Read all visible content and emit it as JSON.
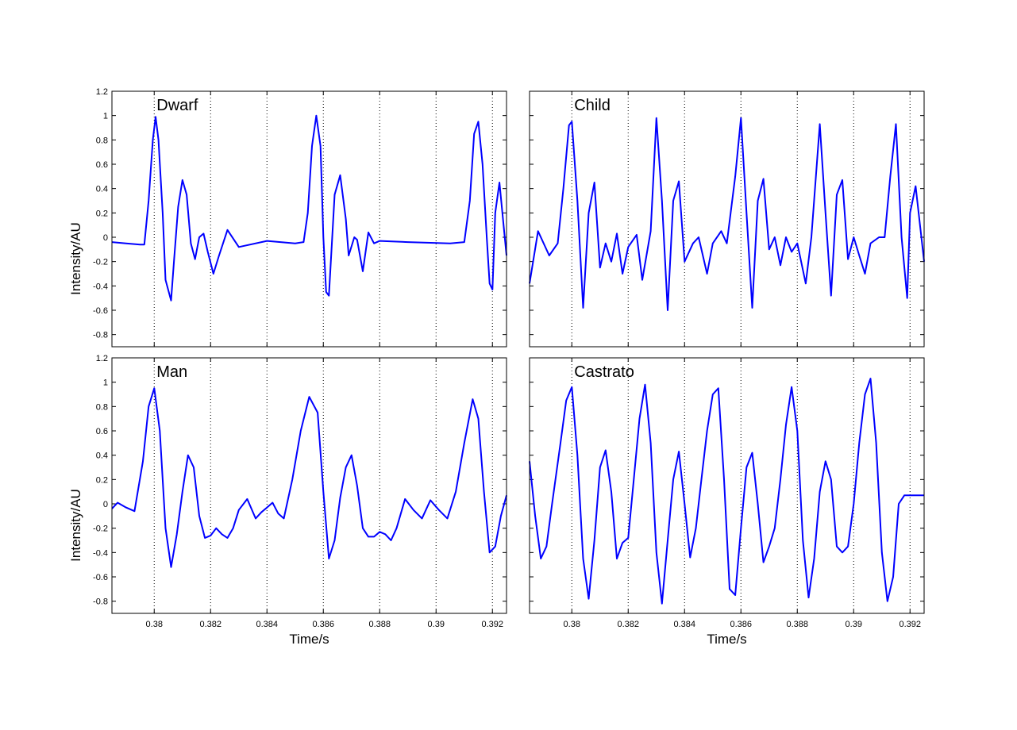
{
  "chart_data": [
    {
      "type": "line",
      "title": "Dwarf",
      "xlabel": "",
      "ylabel": "Intensity/AU",
      "xlim": [
        0.3785,
        0.3925
      ],
      "ylim": [
        -0.9,
        1.2
      ],
      "xticks": [
        0.38,
        0.382,
        0.384,
        0.386,
        0.388,
        0.39,
        0.392
      ],
      "xtick_labels": [],
      "yticks": [
        -0.8,
        -0.6,
        -0.4,
        -0.2,
        0,
        0.2,
        0.4,
        0.6,
        0.8,
        1,
        1.2
      ],
      "ytick_labels": [
        "-0.8",
        "-0.6",
        "-0.4",
        "-0.2",
        "0",
        "0.2",
        "0.4",
        "0.6",
        "0.8",
        "1",
        "1.2"
      ],
      "grid": "x-dotted",
      "color": "#0000ff",
      "series": [
        {
          "x": [
            0.3785,
            0.379,
            0.3795,
            0.37965,
            0.3798,
            0.37995,
            0.38005,
            0.38015,
            0.3803,
            0.3804,
            0.3806,
            0.3807,
            0.38085,
            0.381,
            0.38115,
            0.3813,
            0.38145,
            0.3816,
            0.38175,
            0.3819,
            0.3821,
            0.3823,
            0.3826,
            0.383,
            0.384,
            0.385,
            0.3853,
            0.38545,
            0.3856,
            0.38575,
            0.3859,
            0.386,
            0.3861,
            0.3862,
            0.3864,
            0.3866,
            0.3868,
            0.3869,
            0.3871,
            0.3872,
            0.3874,
            0.3876,
            0.3878,
            0.388,
            0.389,
            0.3905,
            0.391,
            0.3912,
            0.39135,
            0.3915,
            0.39165,
            0.3918,
            0.3919,
            0.392,
            0.3921,
            0.39225,
            0.3925
          ],
          "y": [
            -0.04,
            -0.05,
            -0.06,
            -0.06,
            0.3,
            0.8,
            0.99,
            0.8,
            0.2,
            -0.35,
            -0.52,
            -0.2,
            0.25,
            0.47,
            0.35,
            -0.05,
            -0.18,
            0.0,
            0.03,
            -0.12,
            -0.3,
            -0.15,
            0.06,
            -0.08,
            -0.03,
            -0.05,
            -0.04,
            0.2,
            0.75,
            1.0,
            0.75,
            0.0,
            -0.45,
            -0.48,
            0.35,
            0.51,
            0.15,
            -0.15,
            0.0,
            -0.02,
            -0.28,
            0.04,
            -0.05,
            -0.03,
            -0.04,
            -0.05,
            -0.04,
            0.3,
            0.85,
            0.95,
            0.6,
            0.0,
            -0.38,
            -0.43,
            0.2,
            0.45,
            -0.15
          ]
        }
      ]
    },
    {
      "type": "line",
      "title": "Child",
      "xlabel": "",
      "ylabel": "",
      "xlim": [
        0.3785,
        0.3925
      ],
      "ylim": [
        -0.9,
        1.2
      ],
      "xticks": [
        0.38,
        0.382,
        0.384,
        0.386,
        0.388,
        0.39,
        0.392
      ],
      "xtick_labels": [],
      "yticks": [
        -0.8,
        -0.6,
        -0.4,
        -0.2,
        0,
        0.2,
        0.4,
        0.6,
        0.8,
        1,
        1.2
      ],
      "ytick_labels": [],
      "grid": "x-dotted",
      "color": "#0000ff",
      "series": [
        {
          "x": [
            0.3785,
            0.3788,
            0.3792,
            0.3795,
            0.3797,
            0.3799,
            0.38,
            0.3802,
            0.3804,
            0.3806,
            0.3808,
            0.381,
            0.3812,
            0.3814,
            0.3816,
            0.3818,
            0.382,
            0.3823,
            0.3825,
            0.3828,
            0.383,
            0.3832,
            0.3834,
            0.3836,
            0.3838,
            0.384,
            0.3843,
            0.3845,
            0.3848,
            0.385,
            0.3853,
            0.3855,
            0.3858,
            0.386,
            0.3862,
            0.3864,
            0.3866,
            0.3868,
            0.387,
            0.3872,
            0.3874,
            0.3876,
            0.3878,
            0.388,
            0.3883,
            0.3885,
            0.3888,
            0.389,
            0.3892,
            0.3894,
            0.3896,
            0.3898,
            0.39,
            0.3902,
            0.3904,
            0.3906,
            0.3909,
            0.3911,
            0.3913,
            0.3915,
            0.3917,
            0.3919,
            0.392,
            0.3922,
            0.3925
          ],
          "y": [
            -0.38,
            0.05,
            -0.15,
            -0.05,
            0.4,
            0.92,
            0.95,
            0.3,
            -0.58,
            0.2,
            0.45,
            -0.25,
            -0.05,
            -0.2,
            0.03,
            -0.3,
            -0.08,
            0.02,
            -0.35,
            0.05,
            0.98,
            0.3,
            -0.6,
            0.3,
            0.46,
            -0.2,
            -0.05,
            0.0,
            -0.3,
            -0.05,
            0.05,
            -0.05,
            0.5,
            0.98,
            0.2,
            -0.58,
            0.3,
            0.48,
            -0.1,
            0.0,
            -0.23,
            0.0,
            -0.12,
            -0.05,
            -0.38,
            0.0,
            0.93,
            0.2,
            -0.48,
            0.35,
            0.47,
            -0.18,
            0.0,
            -0.15,
            -0.3,
            -0.05,
            0.0,
            0.0,
            0.5,
            0.93,
            0.0,
            -0.5,
            0.2,
            0.42,
            -0.2
          ]
        }
      ]
    },
    {
      "type": "line",
      "title": "Man",
      "xlabel": "Time/s",
      "ylabel": "Intensity/AU",
      "xlim": [
        0.3785,
        0.3925
      ],
      "ylim": [
        -0.9,
        1.2
      ],
      "xticks": [
        0.38,
        0.382,
        0.384,
        0.386,
        0.388,
        0.39,
        0.392
      ],
      "xtick_labels": [
        "0.38",
        "0.382",
        "0.384",
        "0.386",
        "0.388",
        "0.39",
        "0.392"
      ],
      "yticks": [
        -0.8,
        -0.6,
        -0.4,
        -0.2,
        0,
        0.2,
        0.4,
        0.6,
        0.8,
        1,
        1.2
      ],
      "ytick_labels": [
        "-0.8",
        "-0.6",
        "-0.4",
        "-0.2",
        "0",
        "0.2",
        "0.4",
        "0.6",
        "0.8",
        "1",
        "1.2"
      ],
      "grid": "x-dotted",
      "color": "#0000ff",
      "series": [
        {
          "x": [
            0.3785,
            0.3787,
            0.379,
            0.3793,
            0.3796,
            0.3798,
            0.38,
            0.3802,
            0.3804,
            0.3806,
            0.3808,
            0.381,
            0.3812,
            0.3814,
            0.3816,
            0.3818,
            0.382,
            0.3822,
            0.3824,
            0.3826,
            0.3828,
            0.383,
            0.3833,
            0.3836,
            0.3838,
            0.384,
            0.3842,
            0.3844,
            0.3846,
            0.3849,
            0.3852,
            0.3855,
            0.3858,
            0.386,
            0.3862,
            0.3864,
            0.3866,
            0.3868,
            0.387,
            0.3872,
            0.3874,
            0.3876,
            0.3878,
            0.388,
            0.3882,
            0.3884,
            0.3886,
            0.3889,
            0.3892,
            0.3895,
            0.3898,
            0.3901,
            0.3904,
            0.3907,
            0.391,
            0.3913,
            0.3915,
            0.3917,
            0.3919,
            0.3921,
            0.3923,
            0.3925
          ],
          "y": [
            -0.04,
            0.01,
            -0.03,
            -0.06,
            0.35,
            0.8,
            0.95,
            0.6,
            -0.2,
            -0.52,
            -0.25,
            0.1,
            0.4,
            0.3,
            -0.1,
            -0.28,
            -0.26,
            -0.2,
            -0.25,
            -0.28,
            -0.2,
            -0.05,
            0.04,
            -0.12,
            -0.07,
            -0.03,
            0.01,
            -0.08,
            -0.12,
            0.2,
            0.6,
            0.88,
            0.75,
            0.1,
            -0.45,
            -0.3,
            0.05,
            0.3,
            0.4,
            0.15,
            -0.2,
            -0.27,
            -0.27,
            -0.23,
            -0.25,
            -0.3,
            -0.2,
            0.04,
            -0.05,
            -0.12,
            0.03,
            -0.05,
            -0.12,
            0.1,
            0.5,
            0.86,
            0.7,
            0.1,
            -0.4,
            -0.35,
            -0.1,
            0.07
          ]
        }
      ]
    },
    {
      "type": "line",
      "title": "Castrato",
      "xlabel": "Time/s",
      "ylabel": "",
      "xlim": [
        0.3785,
        0.3925
      ],
      "ylim": [
        -0.9,
        1.2
      ],
      "xticks": [
        0.38,
        0.382,
        0.384,
        0.386,
        0.388,
        0.39,
        0.392
      ],
      "xtick_labels": [
        "0.38",
        "0.382",
        "0.384",
        "0.386",
        "0.388",
        "0.39",
        "0.392"
      ],
      "yticks": [
        -0.8,
        -0.6,
        -0.4,
        -0.2,
        0,
        0.2,
        0.4,
        0.6,
        0.8,
        1,
        1.2
      ],
      "ytick_labels": [],
      "grid": "x-dotted",
      "color": "#0000ff",
      "series": [
        {
          "x": [
            0.3785,
            0.3787,
            0.3789,
            0.3791,
            0.3793,
            0.3796,
            0.3798,
            0.38,
            0.3802,
            0.3804,
            0.3806,
            0.3808,
            0.381,
            0.3812,
            0.3814,
            0.3816,
            0.3818,
            0.382,
            0.3822,
            0.3824,
            0.3826,
            0.3828,
            0.383,
            0.3832,
            0.3834,
            0.3836,
            0.3838,
            0.384,
            0.3842,
            0.3844,
            0.3846,
            0.3848,
            0.385,
            0.3852,
            0.3854,
            0.3856,
            0.3858,
            0.386,
            0.3862,
            0.3864,
            0.3866,
            0.3868,
            0.387,
            0.3872,
            0.3874,
            0.3876,
            0.3878,
            0.388,
            0.3882,
            0.3884,
            0.3886,
            0.3888,
            0.389,
            0.3892,
            0.3894,
            0.3896,
            0.3898,
            0.39,
            0.3902,
            0.3904,
            0.3906,
            0.3908,
            0.391,
            0.3912,
            0.3914,
            0.3916,
            0.3918,
            0.392,
            0.3922,
            0.3925
          ],
          "y": [
            0.35,
            -0.1,
            -0.45,
            -0.35,
            0.0,
            0.5,
            0.85,
            0.96,
            0.4,
            -0.45,
            -0.78,
            -0.3,
            0.3,
            0.44,
            0.1,
            -0.45,
            -0.32,
            -0.28,
            0.2,
            0.7,
            0.98,
            0.5,
            -0.4,
            -0.82,
            -0.3,
            0.2,
            0.43,
            0.0,
            -0.44,
            -0.2,
            0.2,
            0.6,
            0.9,
            0.95,
            0.2,
            -0.7,
            -0.75,
            -0.2,
            0.3,
            0.42,
            0.0,
            -0.48,
            -0.35,
            -0.2,
            0.2,
            0.65,
            0.96,
            0.6,
            -0.3,
            -0.77,
            -0.45,
            0.1,
            0.35,
            0.2,
            -0.35,
            -0.4,
            -0.35,
            0.0,
            0.5,
            0.9,
            1.03,
            0.5,
            -0.4,
            -0.8,
            -0.6,
            0.0,
            0.07,
            0.07,
            0.07,
            0.07
          ]
        }
      ]
    }
  ]
}
